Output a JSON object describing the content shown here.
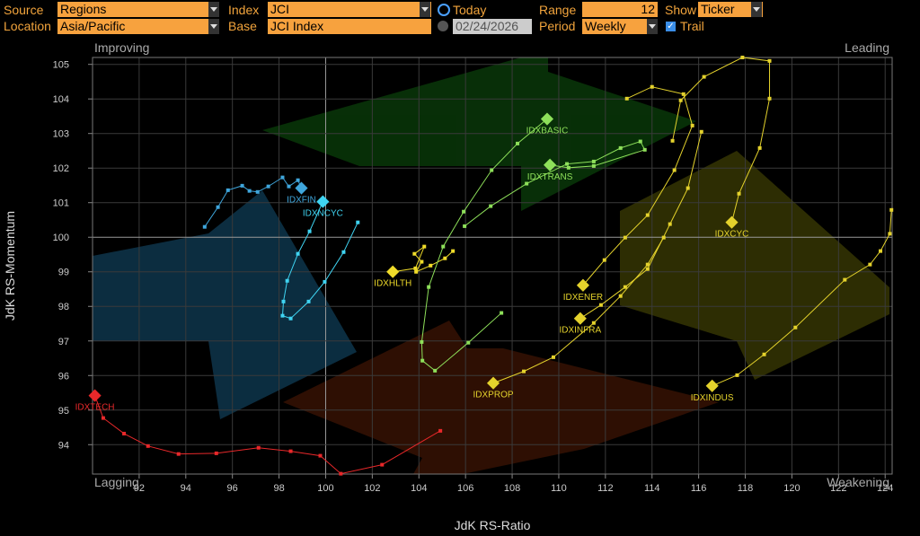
{
  "controls": {
    "source_label": "Source",
    "source": "Regions",
    "index_label": "Index",
    "index": "JCI",
    "today": "Today",
    "range_label": "Range",
    "range": 12,
    "show_label": "Show",
    "show": "Ticker",
    "location_label": "Location",
    "location": "Asia/Pacific",
    "base_label": "Base",
    "base": "JCI Index",
    "date": "02/24/2026",
    "period_label": "Period",
    "period": "Weekly",
    "trail": "Trail"
  },
  "chart_data": {
    "type": "line",
    "x_label": "JdK RS-Ratio",
    "y_label": "JdK RS-Momentum",
    "quadrants": {
      "top_left": "Improving",
      "top_right": "Leading",
      "bottom_left": "Lagging",
      "bottom_right": "Weakening"
    },
    "xlim": [
      90,
      124.3
    ],
    "ylim": [
      93.15,
      105.2
    ],
    "xticks": [
      92,
      94,
      96,
      98,
      100,
      102,
      104,
      106,
      108,
      110,
      112,
      114,
      116,
      118,
      120,
      122,
      124
    ],
    "yticks": [
      94,
      95,
      96,
      97,
      98,
      99,
      100,
      101,
      102,
      103,
      104,
      105
    ],
    "center": 100,
    "grid": true,
    "series": [
      {
        "name": "IDXTECH",
        "color": "#e8282a",
        "x": [
          104.92,
          102.42,
          100.65,
          99.77,
          98.5,
          97.12,
          95.31,
          93.69,
          92.38,
          91.35,
          90.46,
          90.1
        ],
        "values": [
          94.4,
          93.42,
          93.16,
          93.68,
          93.81,
          93.91,
          93.75,
          93.73,
          93.96,
          94.32,
          94.77,
          95.42
        ]
      },
      {
        "name": "IDXFIN",
        "color": "#3fa6dc",
        "x": [
          94.81,
          95.38,
          95.81,
          96.42,
          96.73,
          97.08,
          97.54,
          98.15,
          98.42,
          98.81,
          98.96
        ],
        "values": [
          100.3,
          100.87,
          101.36,
          101.49,
          101.34,
          101.31,
          101.47,
          101.73,
          101.47,
          101.65,
          101.42
        ]
      },
      {
        "name": "IDXNCYC",
        "color": "#3fd4f2",
        "x": [
          101.38,
          100.77,
          99.96,
          99.27,
          98.5,
          98.15,
          98.19,
          98.35,
          98.81,
          99.31,
          99.88
        ],
        "values": [
          100.43,
          99.57,
          98.71,
          98.14,
          97.65,
          97.73,
          98.14,
          98.74,
          99.52,
          100.17,
          101.03
        ]
      },
      {
        "name": "IDXHLTH",
        "color": "#f0dc2a",
        "x": [
          105.46,
          105.12,
          104.5,
          103.88,
          104.12,
          103.81,
          104.23,
          103.85,
          102.88
        ],
        "values": [
          99.6,
          99.39,
          99.18,
          99.0,
          99.29,
          99.52,
          99.73,
          99.1,
          99.0
        ]
      },
      {
        "name": "IDXBASIC",
        "color": "#8ee05a",
        "x": [
          107.54,
          106.12,
          104.69,
          104.15,
          104.12,
          104.42,
          105.04,
          105.92,
          107.12,
          108.23,
          109.5
        ],
        "values": [
          97.81,
          96.95,
          96.14,
          96.43,
          96.97,
          98.56,
          99.73,
          100.74,
          101.94,
          102.71,
          103.42
        ]
      },
      {
        "name": "IDXTRANS",
        "color": "#8ee05a",
        "x": [
          105.96,
          107.08,
          108.62,
          110.35,
          111.5,
          112.65,
          113.5,
          113.69,
          111.5,
          110.42,
          109.62
        ],
        "values": [
          100.32,
          100.9,
          101.55,
          102.12,
          102.19,
          102.58,
          102.77,
          102.53,
          102.06,
          102.01,
          102.09
        ]
      },
      {
        "name": "IDXCYC",
        "color": "#e4d22c",
        "x": [
          114.88,
          115.23,
          116.23,
          117.88,
          119.04,
          119.04,
          118.62,
          117.73,
          117.42
        ],
        "values": [
          102.79,
          103.96,
          104.64,
          105.2,
          105.1,
          104.01,
          102.58,
          101.26,
          100.43
        ]
      },
      {
        "name": "IDXENER",
        "color": "#e4d22c",
        "x": [
          112.92,
          114.0,
          115.35,
          115.73,
          114.96,
          113.81,
          112.85,
          111.96,
          111.04
        ],
        "values": [
          104.01,
          104.35,
          104.14,
          103.23,
          101.94,
          100.64,
          99.99,
          99.34,
          98.61
        ]
      },
      {
        "name": "IDXINFRA",
        "color": "#e4d22c",
        "x": [
          116.12,
          115.54,
          114.77,
          113.81,
          112.85,
          111.81,
          110.92
        ],
        "values": [
          103.05,
          101.42,
          100.38,
          99.08,
          98.56,
          98.04,
          97.65
        ]
      },
      {
        "name": "IDXPROP",
        "color": "#e4d22c",
        "x": [
          114.5,
          113.81,
          112.65,
          111.5,
          109.77,
          108.5,
          107.19
        ],
        "values": [
          99.99,
          99.21,
          98.3,
          97.52,
          96.53,
          96.12,
          95.78
        ]
      },
      {
        "name": "IDXINDUS",
        "color": "#e4d22c",
        "x": [
          124.27,
          124.2,
          123.8,
          123.35,
          122.27,
          120.15,
          118.81,
          117.65,
          116.58
        ],
        "values": [
          100.79,
          100.1,
          99.6,
          99.21,
          98.77,
          97.39,
          96.61,
          96.01,
          95.7
        ]
      }
    ]
  }
}
